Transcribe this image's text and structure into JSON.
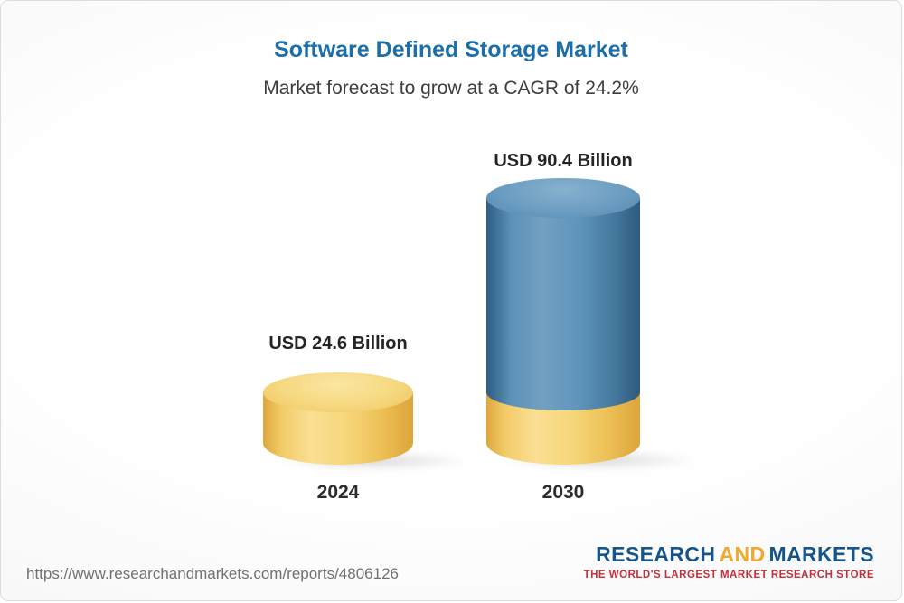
{
  "header": {
    "title": "Software Defined Storage Market",
    "subtitle": "Market forecast to grow at a CAGR of 24.2%"
  },
  "chart_data": {
    "type": "bar",
    "variant": "3d-cylinder",
    "categories": [
      "2024",
      "2030"
    ],
    "values": [
      24.6,
      90.4
    ],
    "unit": "USD Billion",
    "value_labels": [
      "USD 24.6 Billion",
      "USD 90.4 Billion"
    ],
    "cagr_percent": 24.2,
    "stacked": true,
    "base_value": 24.6,
    "ylim": [
      0,
      90.4
    ],
    "grid": false,
    "legend": "none",
    "colors": {
      "bar_2024": "#F3CF6C",
      "bar_2030_growth": "#5E93BA",
      "bar_2030_base": "#F3CF6C"
    }
  },
  "footer": {
    "url": "https://www.researchandmarkets.com/reports/4806126",
    "logo": {
      "word1": "RESEARCH",
      "word2": "AND",
      "word3": "MARKETS",
      "tagline": "THE WORLD'S LARGEST MARKET RESEARCH STORE",
      "colors": {
        "blue": "#17548A",
        "gold": "#F0A92E",
        "tagline_red": "#C2303C"
      }
    }
  }
}
